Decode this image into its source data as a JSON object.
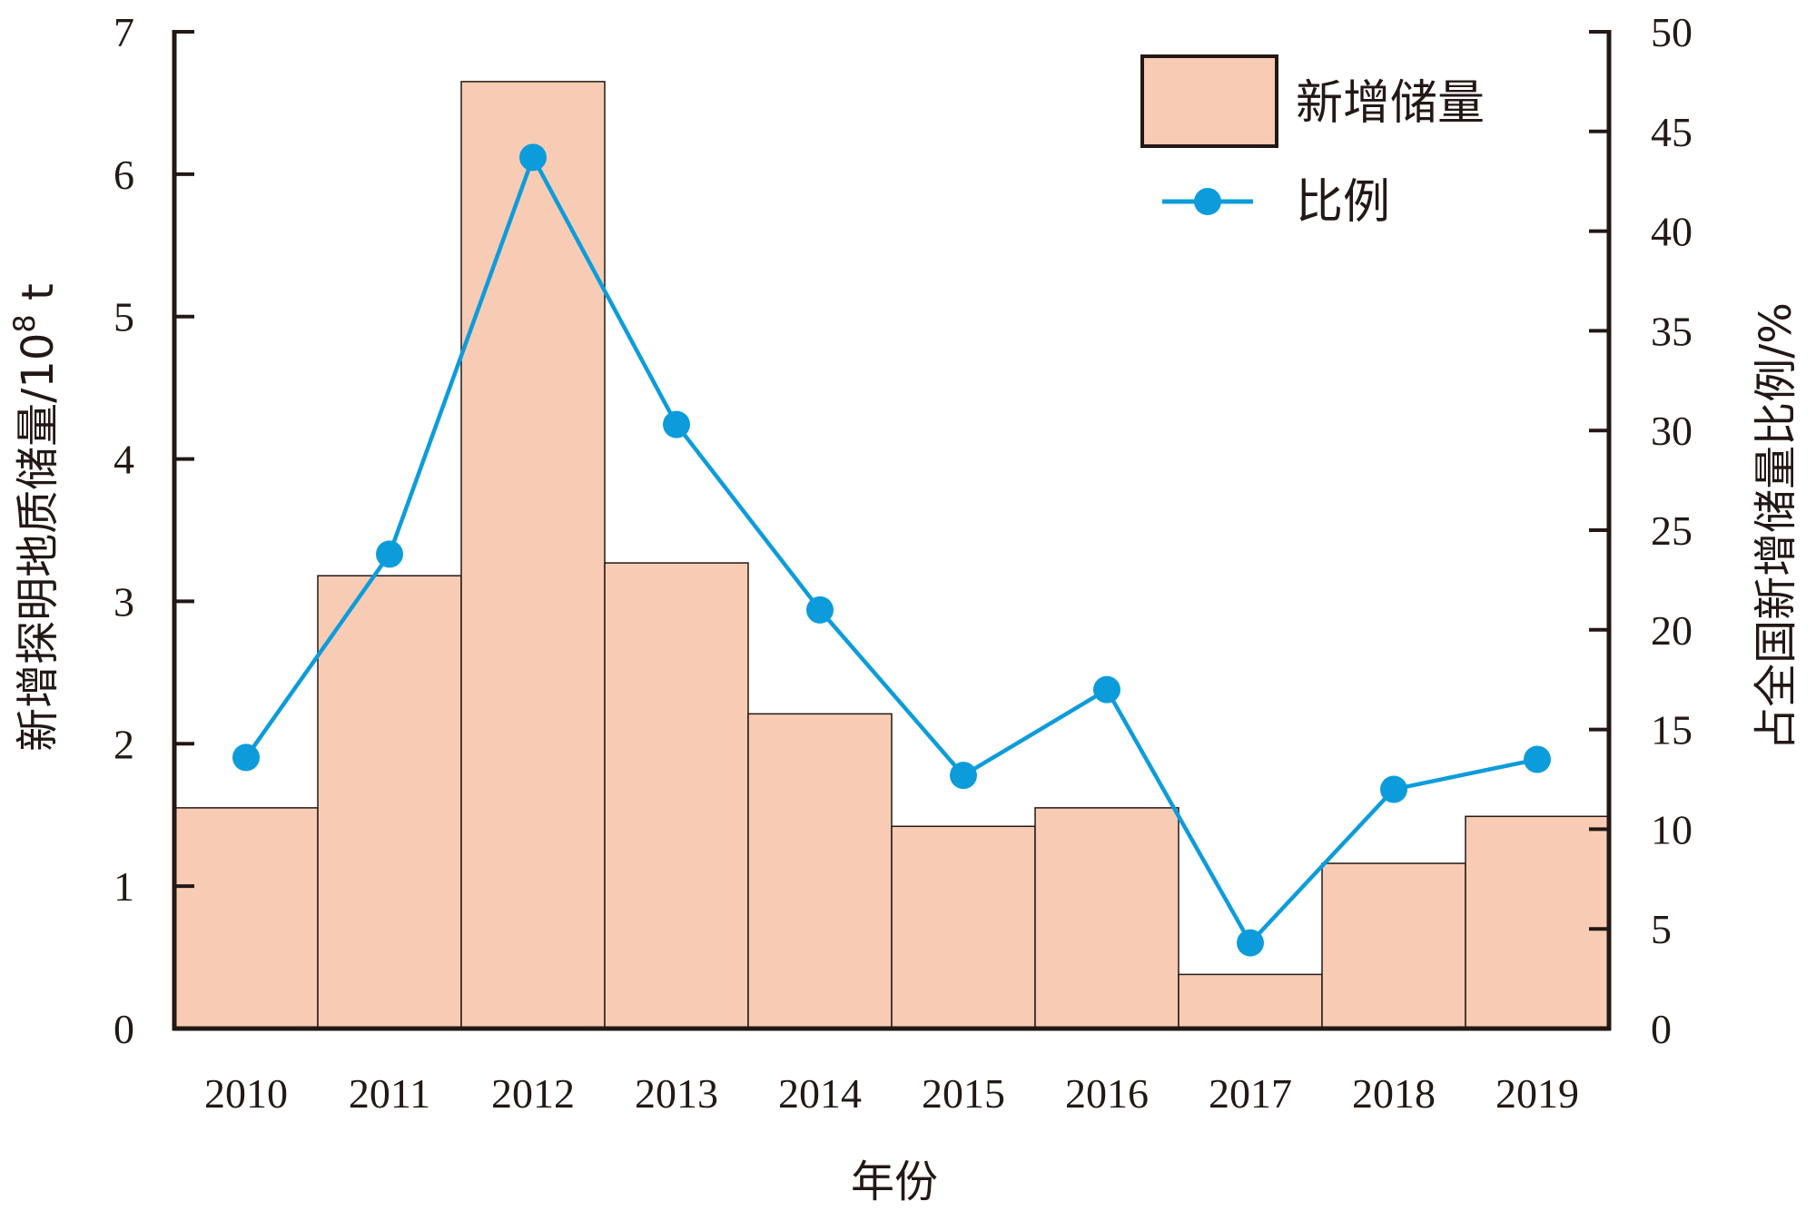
{
  "chart_data": {
    "type": "bar+line",
    "categories": [
      "2010",
      "2011",
      "2012",
      "2013",
      "2014",
      "2015",
      "2016",
      "2017",
      "2018",
      "2019"
    ],
    "series": [
      {
        "name": "新增储量",
        "type": "bar",
        "axis": "left",
        "values": [
          1.55,
          3.18,
          6.65,
          3.27,
          2.21,
          1.42,
          1.55,
          0.38,
          1.16,
          1.49
        ],
        "color": "#F8CCB4"
      },
      {
        "name": "比例",
        "type": "line",
        "axis": "right",
        "values": [
          13.6,
          23.8,
          43.7,
          30.3,
          21.0,
          12.7,
          17.0,
          4.3,
          12.0,
          13.5
        ],
        "color": "#0D9CDB"
      }
    ],
    "xlabel": "年份",
    "ylabel_left": {
      "prefix": "新增探明地质储量/10",
      "superscript": "8",
      "suffix": " t"
    },
    "ylabel_right": "占全国新增储量比例/%",
    "ylim_left": [
      0,
      7
    ],
    "yticks_left": [
      "0",
      "1",
      "2",
      "3",
      "4",
      "5",
      "6",
      "7"
    ],
    "ylim_right": [
      0,
      50
    ],
    "yticks_right": [
      "0",
      "5",
      "10",
      "15",
      "20",
      "25",
      "30",
      "35",
      "40",
      "45",
      "50"
    ],
    "legend_position": "top-right",
    "grid": false,
    "axis_color": "#231815"
  }
}
